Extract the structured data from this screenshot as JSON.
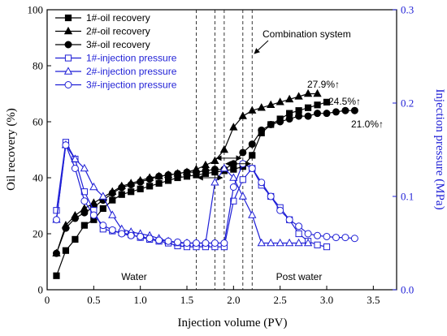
{
  "chart_data": {
    "type": "line",
    "xlabel": "Injection volume (PV)",
    "ylabel_left": "Oil recovery (%)",
    "ylabel_right": "Injection pressure (MPa)",
    "xlim": [
      0,
      3.75
    ],
    "ylim_left": [
      0,
      100
    ],
    "ylim_right": [
      0,
      0.3
    ],
    "x_ticks": [
      0,
      0.5,
      1.0,
      1.5,
      2.0,
      2.5,
      3.0,
      3.5
    ],
    "x_tick_labels": [
      "0",
      "0.5",
      "1.0",
      "1.5",
      "2.0",
      "2.5",
      "3.0",
      "3.5"
    ],
    "y_left_ticks": [
      0,
      20,
      40,
      60,
      80,
      100
    ],
    "y_left_tick_labels": [
      "0",
      "20",
      "40",
      "60",
      "80",
      "100"
    ],
    "y_right_ticks": [
      0,
      0.1,
      0.2,
      0.3
    ],
    "y_right_tick_labels": [
      "0.0",
      "0.1",
      "0.2",
      "0.3"
    ],
    "grid": false,
    "legend_position": "top-left",
    "colors": {
      "recovery": "#000000",
      "pressure": "#1f1fd6"
    },
    "vertical_lines_x": [
      1.6,
      1.8,
      1.9,
      2.1,
      2.2
    ],
    "annotations": {
      "water": "Water",
      "post_water": "Post water",
      "combination": "Combination system",
      "final_1": "24.5%↑",
      "final_2": "27.9%↑",
      "final_3": "21.0%↑"
    },
    "series": [
      {
        "name": "1#-oil recovery",
        "axis": "left",
        "marker": "square",
        "filled": true,
        "x": [
          0.1,
          0.2,
          0.3,
          0.4,
          0.5,
          0.6,
          0.7,
          0.8,
          0.9,
          1.0,
          1.1,
          1.2,
          1.3,
          1.4,
          1.5,
          1.6,
          1.7,
          1.8,
          1.9,
          2.0,
          2.1,
          2.2,
          2.3,
          2.4,
          2.5,
          2.6,
          2.7,
          2.8,
          2.9,
          3.0
        ],
        "y": [
          5,
          14,
          18,
          23,
          25,
          29,
          32,
          34,
          35,
          36,
          37,
          38,
          39,
          40,
          40.5,
          41,
          41.5,
          42,
          42.5,
          43,
          44,
          48,
          56,
          59,
          61,
          63,
          64,
          65,
          66,
          67
        ]
      },
      {
        "name": "2#-oil recovery",
        "axis": "left",
        "marker": "triangle",
        "filled": true,
        "x": [
          0.1,
          0.2,
          0.3,
          0.4,
          0.5,
          0.6,
          0.7,
          0.8,
          0.9,
          1.0,
          1.1,
          1.2,
          1.3,
          1.4,
          1.5,
          1.6,
          1.7,
          1.8,
          1.9,
          2.0,
          2.1,
          2.2,
          2.3,
          2.4,
          2.5,
          2.6,
          2.7,
          2.8,
          2.9
        ],
        "y": [
          13,
          23,
          26.5,
          29,
          31,
          33,
          35,
          37,
          38,
          39,
          40,
          40.5,
          41,
          41.5,
          42,
          43,
          44.5,
          46,
          50,
          58,
          62,
          64,
          65,
          66,
          67,
          68,
          69,
          70,
          70
        ]
      },
      {
        "name": "3#-oil recovery",
        "axis": "left",
        "marker": "circle",
        "filled": true,
        "x": [
          0.1,
          0.2,
          0.3,
          0.4,
          0.5,
          0.6,
          0.7,
          0.8,
          0.9,
          1.0,
          1.1,
          1.2,
          1.3,
          1.4,
          1.5,
          1.6,
          1.7,
          1.8,
          1.9,
          2.0,
          2.1,
          2.2,
          2.3,
          2.4,
          2.5,
          2.6,
          2.7,
          2.8,
          2.9,
          3.0,
          3.1,
          3.2,
          3.3
        ],
        "y": [
          13,
          22,
          25.5,
          27.5,
          29.5,
          32,
          34.5,
          36.5,
          37.5,
          38.5,
          39.5,
          40.5,
          41,
          41.5,
          42,
          42,
          42.5,
          43,
          43,
          45,
          49,
          52,
          57,
          59,
          60,
          61,
          62,
          62,
          63,
          63,
          63.5,
          64,
          64
        ]
      },
      {
        "name": "1#-injection pressure",
        "axis": "right",
        "marker": "square",
        "filled": false,
        "x": [
          0.1,
          0.2,
          0.3,
          0.4,
          0.5,
          0.6,
          0.7,
          0.8,
          0.9,
          1.0,
          1.1,
          1.2,
          1.3,
          1.4,
          1.5,
          1.6,
          1.7,
          1.8,
          1.9,
          2.0,
          2.1,
          2.2,
          2.3,
          2.4,
          2.5,
          2.6,
          2.7,
          2.8,
          2.9,
          3.0
        ],
        "y": [
          0.085,
          0.158,
          0.14,
          0.105,
          0.085,
          0.065,
          0.063,
          0.061,
          0.059,
          0.056,
          0.054,
          0.052,
          0.05,
          0.047,
          0.046,
          0.046,
          0.046,
          0.046,
          0.046,
          0.095,
          0.118,
          0.13,
          0.112,
          0.1,
          0.088,
          0.075,
          0.06,
          0.052,
          0.048,
          0.046
        ]
      },
      {
        "name": "2#-injection pressure",
        "axis": "right",
        "marker": "triangle",
        "filled": false,
        "x": [
          0.1,
          0.2,
          0.3,
          0.4,
          0.5,
          0.6,
          0.7,
          0.8,
          0.9,
          1.0,
          1.1,
          1.2,
          1.3,
          1.4,
          1.5,
          1.6,
          1.7,
          1.8,
          1.9,
          2.0,
          2.1,
          2.2,
          2.3,
          2.4,
          2.5,
          2.6,
          2.7,
          2.8
        ],
        "y": [
          0.075,
          0.155,
          0.14,
          0.13,
          0.11,
          0.1,
          0.08,
          0.065,
          0.062,
          0.06,
          0.058,
          0.055,
          0.052,
          0.05,
          0.05,
          0.05,
          0.05,
          0.115,
          0.13,
          0.12,
          0.1,
          0.08,
          0.05,
          0.05,
          0.05,
          0.05,
          0.05,
          0.05
        ]
      },
      {
        "name": "3#-injection pressure",
        "axis": "right",
        "marker": "circle",
        "filled": false,
        "x": [
          0.1,
          0.2,
          0.3,
          0.4,
          0.5,
          0.6,
          0.7,
          0.8,
          0.9,
          1.0,
          1.1,
          1.2,
          1.3,
          1.4,
          1.5,
          1.6,
          1.7,
          1.8,
          1.9,
          2.0,
          2.1,
          2.2,
          2.3,
          2.4,
          2.5,
          2.6,
          2.7,
          2.8,
          2.9,
          3.0,
          3.1,
          3.2,
          3.3
        ],
        "y": [
          0.075,
          0.155,
          0.13,
          0.095,
          0.08,
          0.069,
          0.064,
          0.06,
          0.058,
          0.057,
          0.055,
          0.053,
          0.052,
          0.051,
          0.05,
          0.05,
          0.05,
          0.05,
          0.05,
          0.11,
          0.135,
          0.13,
          0.115,
          0.1,
          0.085,
          0.075,
          0.068,
          0.06,
          0.058,
          0.057,
          0.056,
          0.056,
          0.055
        ]
      }
    ]
  }
}
